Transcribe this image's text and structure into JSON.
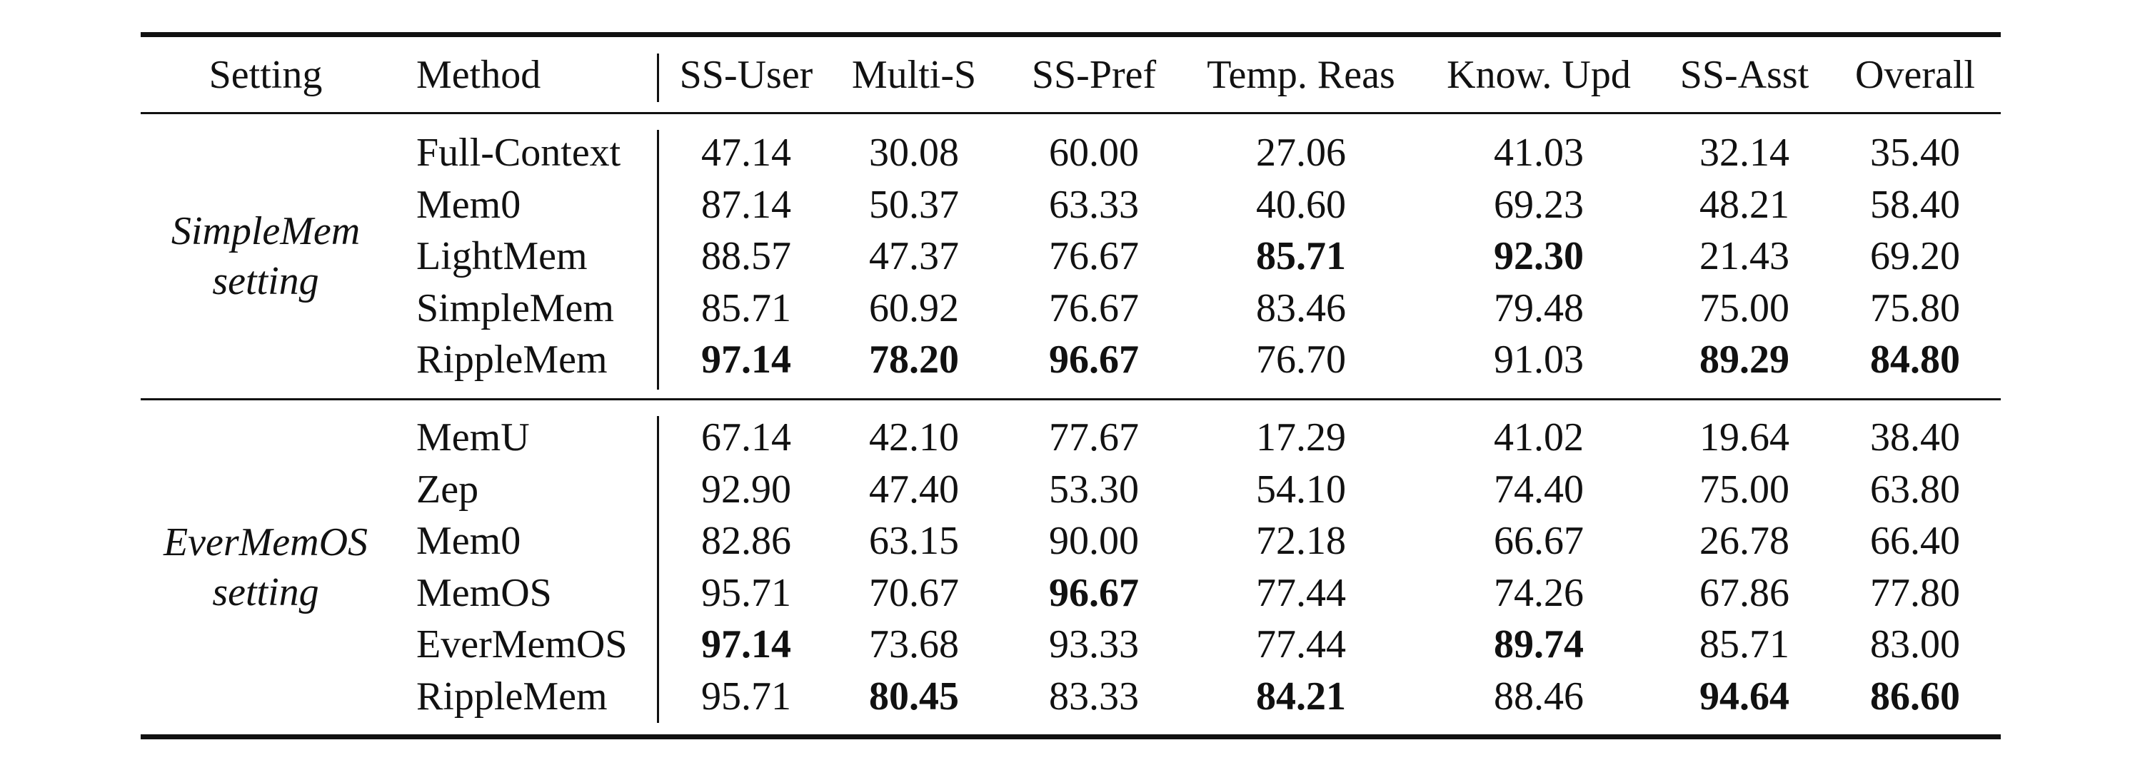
{
  "table": {
    "columns": [
      "Setting",
      "Method",
      "SS-User",
      "Multi-S",
      "SS-Pref",
      "Temp. Reas",
      "Know. Upd",
      "SS-Asst",
      "Overall"
    ],
    "groups": [
      {
        "setting": [
          "SimpleMem",
          "setting"
        ],
        "rows": [
          {
            "method": "Full-Context",
            "values": [
              "47.14",
              "30.08",
              "60.00",
              "27.06",
              "41.03",
              "32.14",
              "35.40"
            ],
            "bold": []
          },
          {
            "method": "Mem0",
            "values": [
              "87.14",
              "50.37",
              "63.33",
              "40.60",
              "69.23",
              "48.21",
              "58.40"
            ],
            "bold": []
          },
          {
            "method": "LightMem",
            "values": [
              "88.57",
              "47.37",
              "76.67",
              "85.71",
              "92.30",
              "21.43",
              "69.20"
            ],
            "bold": [
              3,
              4
            ]
          },
          {
            "method": "SimpleMem",
            "values": [
              "85.71",
              "60.92",
              "76.67",
              "83.46",
              "79.48",
              "75.00",
              "75.80"
            ],
            "bold": []
          },
          {
            "method": "RippleMem",
            "values": [
              "97.14",
              "78.20",
              "96.67",
              "76.70",
              "91.03",
              "89.29",
              "84.80"
            ],
            "bold": [
              0,
              1,
              2,
              5,
              6
            ]
          }
        ]
      },
      {
        "setting": [
          "EverMemOS",
          "setting"
        ],
        "rows": [
          {
            "method": "MemU",
            "values": [
              "67.14",
              "42.10",
              "77.67",
              "17.29",
              "41.02",
              "19.64",
              "38.40"
            ],
            "bold": []
          },
          {
            "method": "Zep",
            "values": [
              "92.90",
              "47.40",
              "53.30",
              "54.10",
              "74.40",
              "75.00",
              "63.80"
            ],
            "bold": []
          },
          {
            "method": "Mem0",
            "values": [
              "82.86",
              "63.15",
              "90.00",
              "72.18",
              "66.67",
              "26.78",
              "66.40"
            ],
            "bold": []
          },
          {
            "method": "MemOS",
            "values": [
              "95.71",
              "70.67",
              "96.67",
              "77.44",
              "74.26",
              "67.86",
              "77.80"
            ],
            "bold": [
              2
            ]
          },
          {
            "method": "EverMemOS",
            "values": [
              "97.14",
              "73.68",
              "93.33",
              "77.44",
              "89.74",
              "85.71",
              "83.00"
            ],
            "bold": [
              0,
              4
            ]
          },
          {
            "method": "RippleMem",
            "values": [
              "95.71",
              "80.45",
              "83.33",
              "84.21",
              "88.46",
              "94.64",
              "86.60"
            ],
            "bold": [
              1,
              3,
              5,
              6
            ]
          }
        ]
      }
    ]
  }
}
